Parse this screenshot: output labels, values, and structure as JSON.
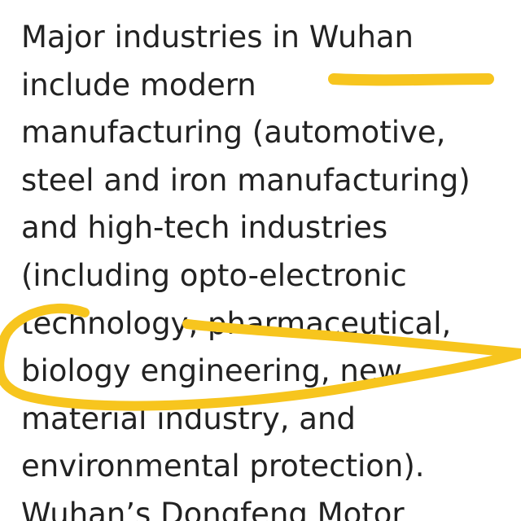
{
  "article": {
    "lines": [
      "Major industries in Wuhan",
      "include modern",
      "manufacturing (automotive,",
      "steel and iron manufacturing)",
      "and high-tech industries",
      "(including opto-electronic",
      "technology, pharmaceutical,",
      "biology engineering, new",
      "material industry, and",
      "environmental protection).",
      "Wuhan’s Dongfeng Motor"
    ]
  },
  "annotations": {
    "highlight_color": "#F7C51E",
    "text_color": "#222222"
  }
}
